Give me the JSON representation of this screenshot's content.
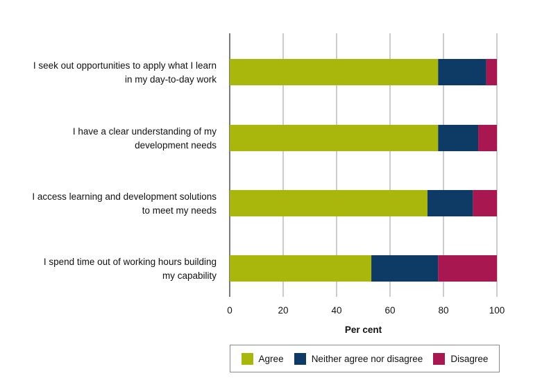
{
  "chart_data": {
    "type": "bar",
    "orientation": "horizontal",
    "stacked": true,
    "categories": [
      [
        "I seek out opportunities to apply what I learn",
        "in my day-to-day work"
      ],
      [
        "I have a clear understanding of my",
        "development needs"
      ],
      [
        "I access learning and development solutions",
        "to meet my needs"
      ],
      [
        "I spend time out of working hours building",
        "my capability"
      ]
    ],
    "series": [
      {
        "name": "Agree",
        "color": "#a9b70d",
        "values": [
          78,
          78,
          74,
          53
        ]
      },
      {
        "name": "Neither agree nor disagree",
        "color": "#0e3b66",
        "values": [
          18,
          15,
          17,
          25
        ]
      },
      {
        "name": "Disagree",
        "color": "#a8174f",
        "values": [
          4,
          7,
          9,
          22
        ]
      }
    ],
    "xlabel": "Per cent",
    "xlim": [
      0,
      100
    ],
    "xticks": [
      0,
      20,
      40,
      60,
      80,
      100
    ],
    "grid": true,
    "legend_position": "bottom"
  }
}
